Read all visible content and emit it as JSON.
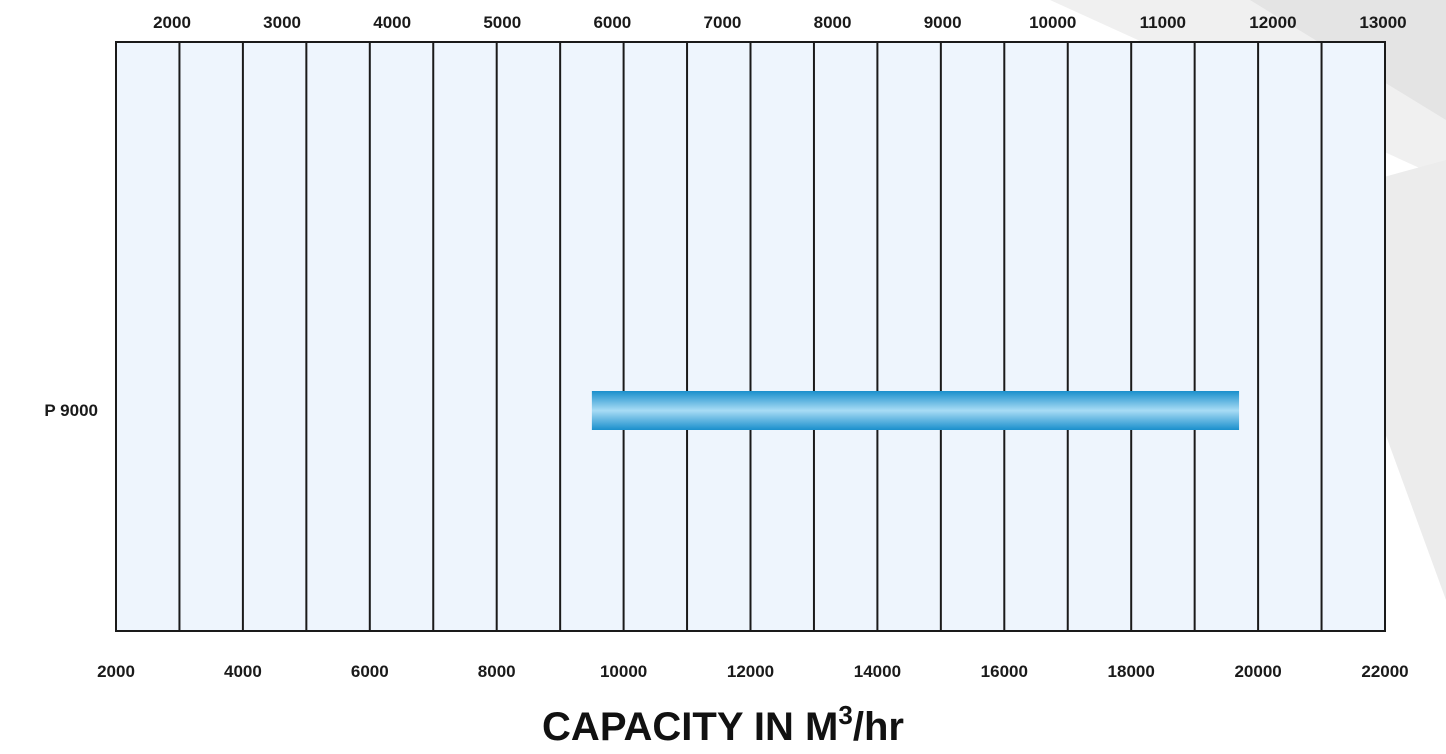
{
  "chart_data": {
    "type": "bar",
    "orientation": "horizontal",
    "title": "",
    "categories": [
      "P 9000"
    ],
    "series": [
      {
        "values": [
          [
            9500,
            19700
          ]
        ]
      }
    ],
    "xlabel_main": "CAPACITY IN M",
    "xlabel_sup": "3",
    "xlabel_tail": "/hr",
    "bottom_axis": {
      "ticks": [
        "2000",
        "4000",
        "6000",
        "8000",
        "10000",
        "12000",
        "14000",
        "16000",
        "18000",
        "20000",
        "22000"
      ],
      "range": [
        2000,
        22000
      ]
    },
    "top_axis": {
      "ticks": [
        "2000",
        "3000",
        "4000",
        "5000",
        "6000",
        "7000",
        "8000",
        "9000",
        "10000",
        "11000",
        "12000",
        "13000"
      ]
    },
    "grid": true,
    "colors": {
      "bar": "#1a8fcc",
      "bar_highlight": "#a8dcf5",
      "plot_bg": "#eef5fd",
      "grid": "#1a1a1a"
    }
  }
}
